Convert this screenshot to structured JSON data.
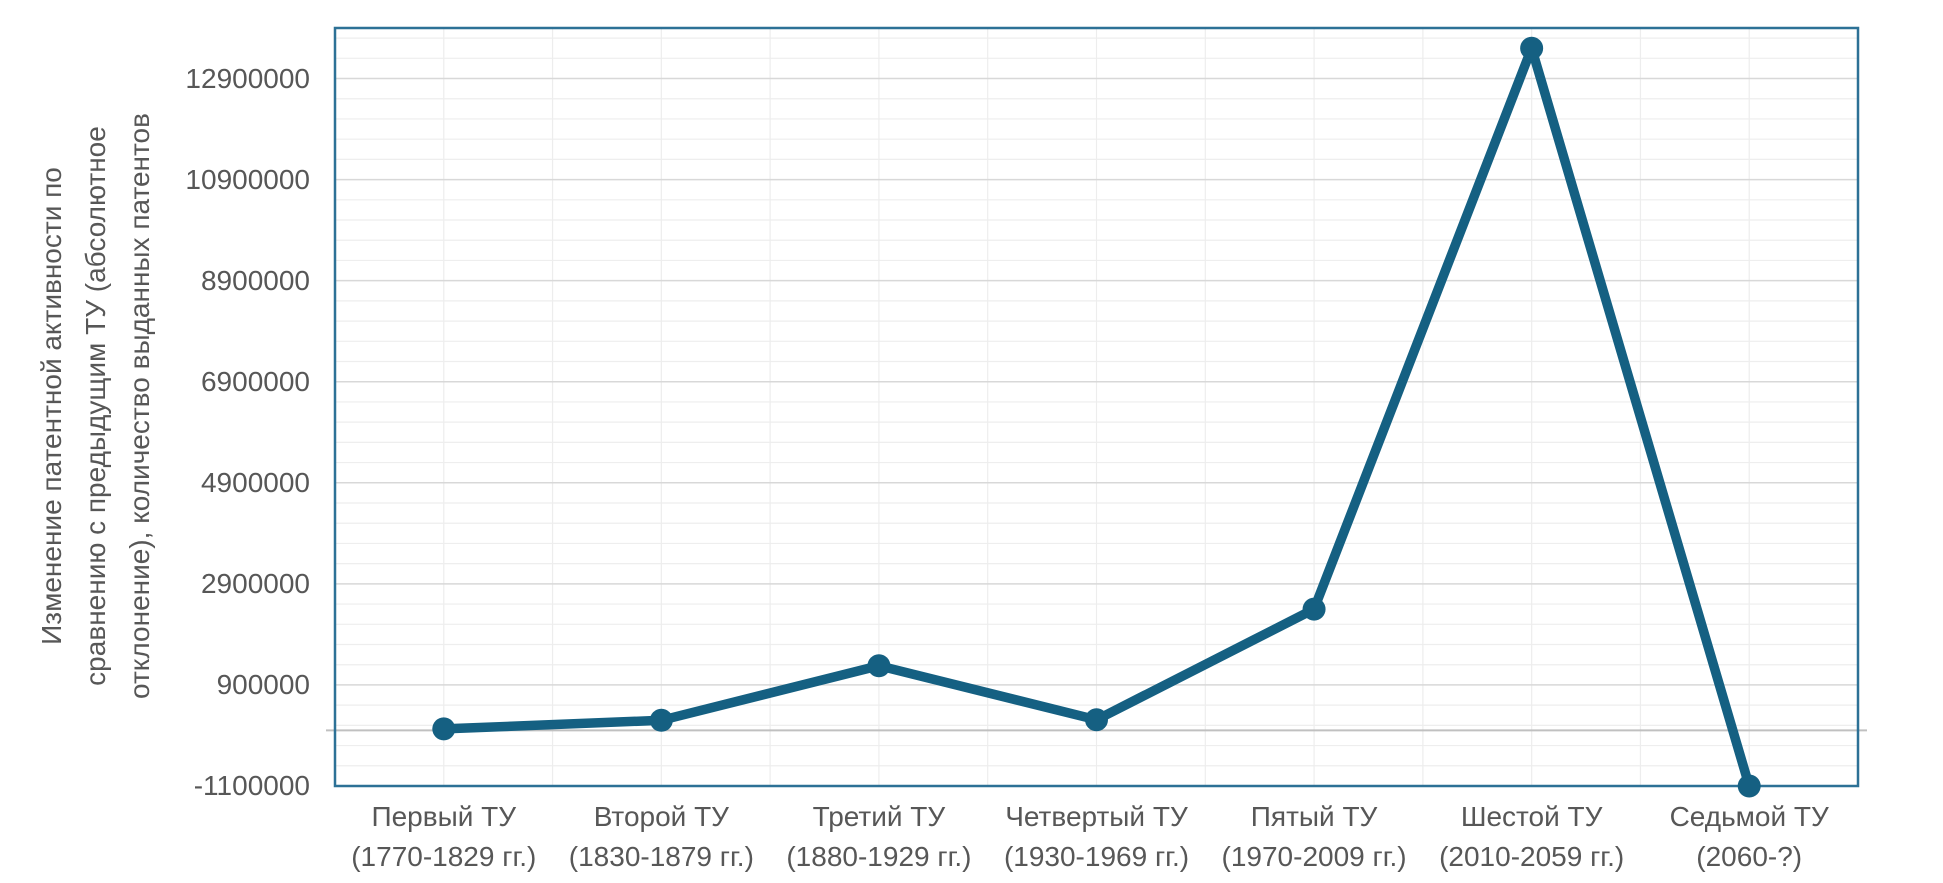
{
  "figure": {
    "background": "#ffffff"
  },
  "chart_data": {
    "type": "line",
    "title": "",
    "ylabel": "Изменение патентной активности по сравнению с предыдущим ТУ (абсолютное отклонение), количество выданных патентов",
    "ylabel_lines": [
      "Изменение патентной активности по",
      "сравнению с предыдущим ТУ (абсолютное",
      "отклонение), количество выданных патентов"
    ],
    "xlabel": "",
    "categories": [
      {
        "name": "Первый ТУ",
        "period": "(1770-1829 гг.)"
      },
      {
        "name": "Второй ТУ",
        "period": "(1830-1879 гг.)"
      },
      {
        "name": "Третий ТУ",
        "period": "(1880-1929 гг.)"
      },
      {
        "name": "Четвертый ТУ",
        "period": "(1930-1969 гг.)"
      },
      {
        "name": "Пятый ТУ",
        "period": "(1970-2009 гг.)"
      },
      {
        "name": "Шестой ТУ",
        "period": "(2010-2059 гг.)"
      },
      {
        "name": "Седьмой ТУ",
        "period": "(2060-?)"
      }
    ],
    "values": [
      30000,
      200000,
      1280000,
      210000,
      2400000,
      13500000,
      -1100000
    ],
    "ylim": [
      -1100000,
      13900000
    ],
    "yticks": [
      -1100000,
      900000,
      2900000,
      4900000,
      6900000,
      8900000,
      10900000,
      12900000
    ],
    "ytick_labels": [
      "-1100000",
      "900000",
      "2900000",
      "4900000",
      "6900000",
      "8900000",
      "10900000",
      "12900000"
    ],
    "y_major_unit": 2000000,
    "y_minor_unit": 400000,
    "x_divisions": 14,
    "grid": true,
    "legend": "none",
    "colors": {
      "series": "#156082",
      "plot_border": "#2d7196",
      "grid_major": "#d8d8d8",
      "grid_minor": "#eeeeee",
      "grid_vertical": "#ededed",
      "zero_line": "#c0c0c0",
      "text": "#575757",
      "background": "#ffffff"
    }
  }
}
